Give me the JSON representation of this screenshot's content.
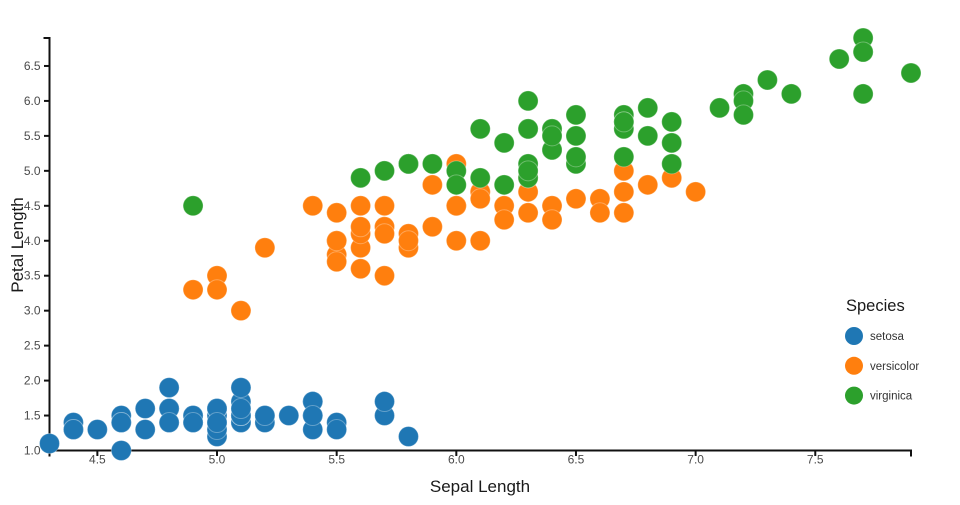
{
  "chart_data": {
    "type": "scatter",
    "title": "",
    "xlabel": "Sepal Length",
    "ylabel": "Petal Length",
    "xlim": [
      4.3,
      7.9
    ],
    "ylim": [
      1.0,
      6.9
    ],
    "xticks": [
      4.5,
      5.0,
      5.5,
      6.0,
      6.5,
      7.0,
      7.5
    ],
    "yticks": [
      1.0,
      1.5,
      2.0,
      2.5,
      3.0,
      3.5,
      4.0,
      4.5,
      5.0,
      5.5,
      6.0,
      6.5
    ],
    "tick_format_decimals": 1,
    "grid": false,
    "background_color": "#ffffff",
    "axis_color": "#111111",
    "tick_label_color": "#4a4a4a",
    "legend": {
      "title": "Species",
      "position": "right-middle"
    },
    "series": [
      {
        "name": "setosa",
        "color": "#1f77b4",
        "points": [
          [
            5.1,
            1.4
          ],
          [
            4.9,
            1.4
          ],
          [
            4.7,
            1.3
          ],
          [
            4.6,
            1.5
          ],
          [
            5.0,
            1.4
          ],
          [
            5.4,
            1.7
          ],
          [
            4.6,
            1.4
          ],
          [
            5.0,
            1.5
          ],
          [
            4.4,
            1.4
          ],
          [
            4.9,
            1.5
          ],
          [
            5.4,
            1.5
          ],
          [
            4.8,
            1.6
          ],
          [
            4.8,
            1.4
          ],
          [
            4.3,
            1.1
          ],
          [
            5.8,
            1.2
          ],
          [
            5.7,
            1.5
          ],
          [
            5.4,
            1.3
          ],
          [
            5.1,
            1.4
          ],
          [
            5.7,
            1.7
          ],
          [
            5.1,
            1.5
          ],
          [
            5.4,
            1.7
          ],
          [
            5.1,
            1.5
          ],
          [
            4.6,
            1.0
          ],
          [
            5.1,
            1.7
          ],
          [
            4.8,
            1.9
          ],
          [
            5.0,
            1.6
          ],
          [
            5.0,
            1.6
          ],
          [
            5.2,
            1.5
          ],
          [
            5.2,
            1.4
          ],
          [
            4.7,
            1.6
          ],
          [
            4.8,
            1.6
          ],
          [
            5.4,
            1.5
          ],
          [
            5.2,
            1.5
          ],
          [
            5.5,
            1.4
          ],
          [
            4.9,
            1.5
          ],
          [
            5.0,
            1.2
          ],
          [
            5.5,
            1.3
          ],
          [
            4.9,
            1.4
          ],
          [
            4.4,
            1.3
          ],
          [
            5.1,
            1.5
          ],
          [
            5.0,
            1.3
          ],
          [
            4.5,
            1.3
          ],
          [
            4.4,
            1.3
          ],
          [
            5.0,
            1.6
          ],
          [
            5.1,
            1.9
          ],
          [
            4.8,
            1.4
          ],
          [
            5.1,
            1.6
          ],
          [
            4.6,
            1.4
          ],
          [
            5.3,
            1.5
          ],
          [
            5.0,
            1.4
          ]
        ]
      },
      {
        "name": "versicolor",
        "color": "#ff7f0e",
        "points": [
          [
            7.0,
            4.7
          ],
          [
            6.4,
            4.5
          ],
          [
            6.9,
            4.9
          ],
          [
            5.5,
            4.0
          ],
          [
            6.5,
            4.6
          ],
          [
            5.7,
            4.5
          ],
          [
            6.3,
            4.7
          ],
          [
            4.9,
            3.3
          ],
          [
            6.6,
            4.6
          ],
          [
            5.2,
            3.9
          ],
          [
            5.0,
            3.5
          ],
          [
            5.9,
            4.2
          ],
          [
            6.0,
            4.0
          ],
          [
            6.1,
            4.7
          ],
          [
            5.6,
            3.6
          ],
          [
            6.7,
            4.4
          ],
          [
            5.6,
            4.5
          ],
          [
            5.8,
            4.1
          ],
          [
            6.2,
            4.5
          ],
          [
            5.6,
            3.9
          ],
          [
            5.9,
            4.8
          ],
          [
            6.1,
            4.0
          ],
          [
            6.3,
            4.9
          ],
          [
            6.1,
            4.7
          ],
          [
            6.4,
            4.3
          ],
          [
            6.6,
            4.4
          ],
          [
            6.8,
            4.8
          ],
          [
            6.7,
            5.0
          ],
          [
            6.0,
            4.5
          ],
          [
            5.7,
            3.5
          ],
          [
            5.5,
            3.8
          ],
          [
            5.5,
            3.7
          ],
          [
            5.8,
            3.9
          ],
          [
            6.0,
            5.1
          ],
          [
            5.4,
            4.5
          ],
          [
            6.0,
            4.5
          ],
          [
            6.7,
            4.7
          ],
          [
            6.3,
            4.4
          ],
          [
            5.6,
            4.1
          ],
          [
            5.5,
            4.0
          ],
          [
            5.5,
            4.4
          ],
          [
            6.1,
            4.6
          ],
          [
            5.8,
            4.0
          ],
          [
            5.0,
            3.3
          ],
          [
            5.6,
            4.2
          ],
          [
            5.7,
            4.2
          ],
          [
            5.7,
            4.2
          ],
          [
            6.2,
            4.3
          ],
          [
            5.1,
            3.0
          ],
          [
            5.7,
            4.1
          ]
        ]
      },
      {
        "name": "virginica",
        "color": "#2ca02c",
        "points": [
          [
            6.3,
            6.0
          ],
          [
            5.8,
            5.1
          ],
          [
            7.1,
            5.9
          ],
          [
            6.3,
            5.6
          ],
          [
            6.5,
            5.8
          ],
          [
            7.6,
            6.6
          ],
          [
            4.9,
            4.5
          ],
          [
            7.3,
            6.3
          ],
          [
            6.7,
            5.8
          ],
          [
            7.2,
            6.1
          ],
          [
            6.5,
            5.1
          ],
          [
            6.4,
            5.3
          ],
          [
            6.8,
            5.5
          ],
          [
            5.7,
            5.0
          ],
          [
            5.8,
            5.1
          ],
          [
            6.4,
            5.3
          ],
          [
            6.5,
            5.5
          ],
          [
            7.7,
            6.7
          ],
          [
            7.7,
            6.9
          ],
          [
            6.0,
            5.0
          ],
          [
            6.9,
            5.7
          ],
          [
            5.6,
            4.9
          ],
          [
            7.7,
            6.7
          ],
          [
            6.3,
            4.9
          ],
          [
            6.7,
            5.7
          ],
          [
            7.2,
            6.0
          ],
          [
            6.2,
            4.8
          ],
          [
            6.1,
            4.9
          ],
          [
            6.4,
            5.6
          ],
          [
            7.2,
            5.8
          ],
          [
            7.4,
            6.1
          ],
          [
            7.9,
            6.4
          ],
          [
            6.4,
            5.6
          ],
          [
            6.3,
            5.1
          ],
          [
            6.1,
            5.6
          ],
          [
            7.7,
            6.1
          ],
          [
            6.3,
            5.6
          ],
          [
            6.4,
            5.5
          ],
          [
            6.0,
            4.8
          ],
          [
            6.9,
            5.4
          ],
          [
            6.7,
            5.6
          ],
          [
            6.9,
            5.1
          ],
          [
            5.8,
            5.1
          ],
          [
            6.8,
            5.9
          ],
          [
            6.7,
            5.7
          ],
          [
            6.7,
            5.2
          ],
          [
            6.3,
            5.0
          ],
          [
            6.5,
            5.2
          ],
          [
            6.2,
            5.4
          ],
          [
            5.9,
            5.1
          ]
        ]
      }
    ]
  }
}
